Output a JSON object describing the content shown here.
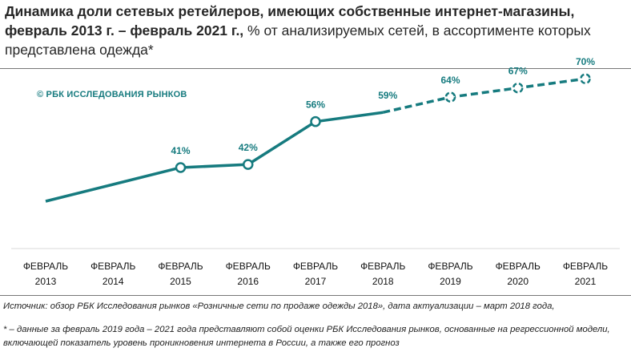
{
  "header": {
    "title_bold": "Динамика доли сетевых ретейлеров, имеющих собственные интернет-магазины, февраль 2013 г. – февраль 2021 г.,",
    "title_rest": " % от анализируемых сетей, в ассортименте которых представлена одежда*"
  },
  "watermark": "© РБК ИССЛЕДОВАНИЯ РЫНКОВ",
  "chart_data": {
    "type": "line",
    "categories": [
      "ФЕВРАЛЬ 2013",
      "ФЕВРАЛЬ 2014",
      "ФЕВРАЛЬ 2015",
      "ФЕВРАЛЬ 2016",
      "ФЕВРАЛЬ 2017",
      "ФЕВРАЛЬ 2018",
      "ФЕВРАЛЬ 2019",
      "ФЕВРАЛЬ 2020",
      "ФЕВРАЛЬ 2021"
    ],
    "category_lines": [
      [
        "ФЕВРАЛЬ",
        "2013"
      ],
      [
        "ФЕВРАЛЬ",
        "2014"
      ],
      [
        "ФЕВРАЛЬ",
        "2015"
      ],
      [
        "ФЕВРАЛЬ",
        "2016"
      ],
      [
        "ФЕВРАЛЬ",
        "2017"
      ],
      [
        "ФЕВРАЛЬ",
        "2018"
      ],
      [
        "ФЕВРАЛЬ",
        "2019"
      ],
      [
        "ФЕВРАЛЬ",
        "2020"
      ],
      [
        "ФЕВРАЛЬ",
        "2021"
      ]
    ],
    "values": [
      30,
      35.5,
      41,
      42,
      56,
      59,
      64,
      67,
      70
    ],
    "labels": [
      "",
      "",
      "41%",
      "42%",
      "56%",
      "59%",
      "64%",
      "67%",
      "70%"
    ],
    "markers": [
      false,
      false,
      true,
      true,
      true,
      false,
      true,
      true,
      true
    ],
    "forecast_from_index": 5,
    "color": "#167b7f",
    "ylim": [
      20,
      80
    ],
    "grid": false,
    "legend": "none"
  },
  "footer": {
    "source": "Источник: обзор РБК Исследования рынков «Розничные сети по продаже одежды 2018», дата актуализации – март 2018 года,",
    "note": "* – данные за февраль 2019 года – 2021 года представляют собой оценки РБК Исследования рынков, основанные на регрессионной модели, включающей показатель уровень проникновения интернета в России, а также его прогноз"
  }
}
